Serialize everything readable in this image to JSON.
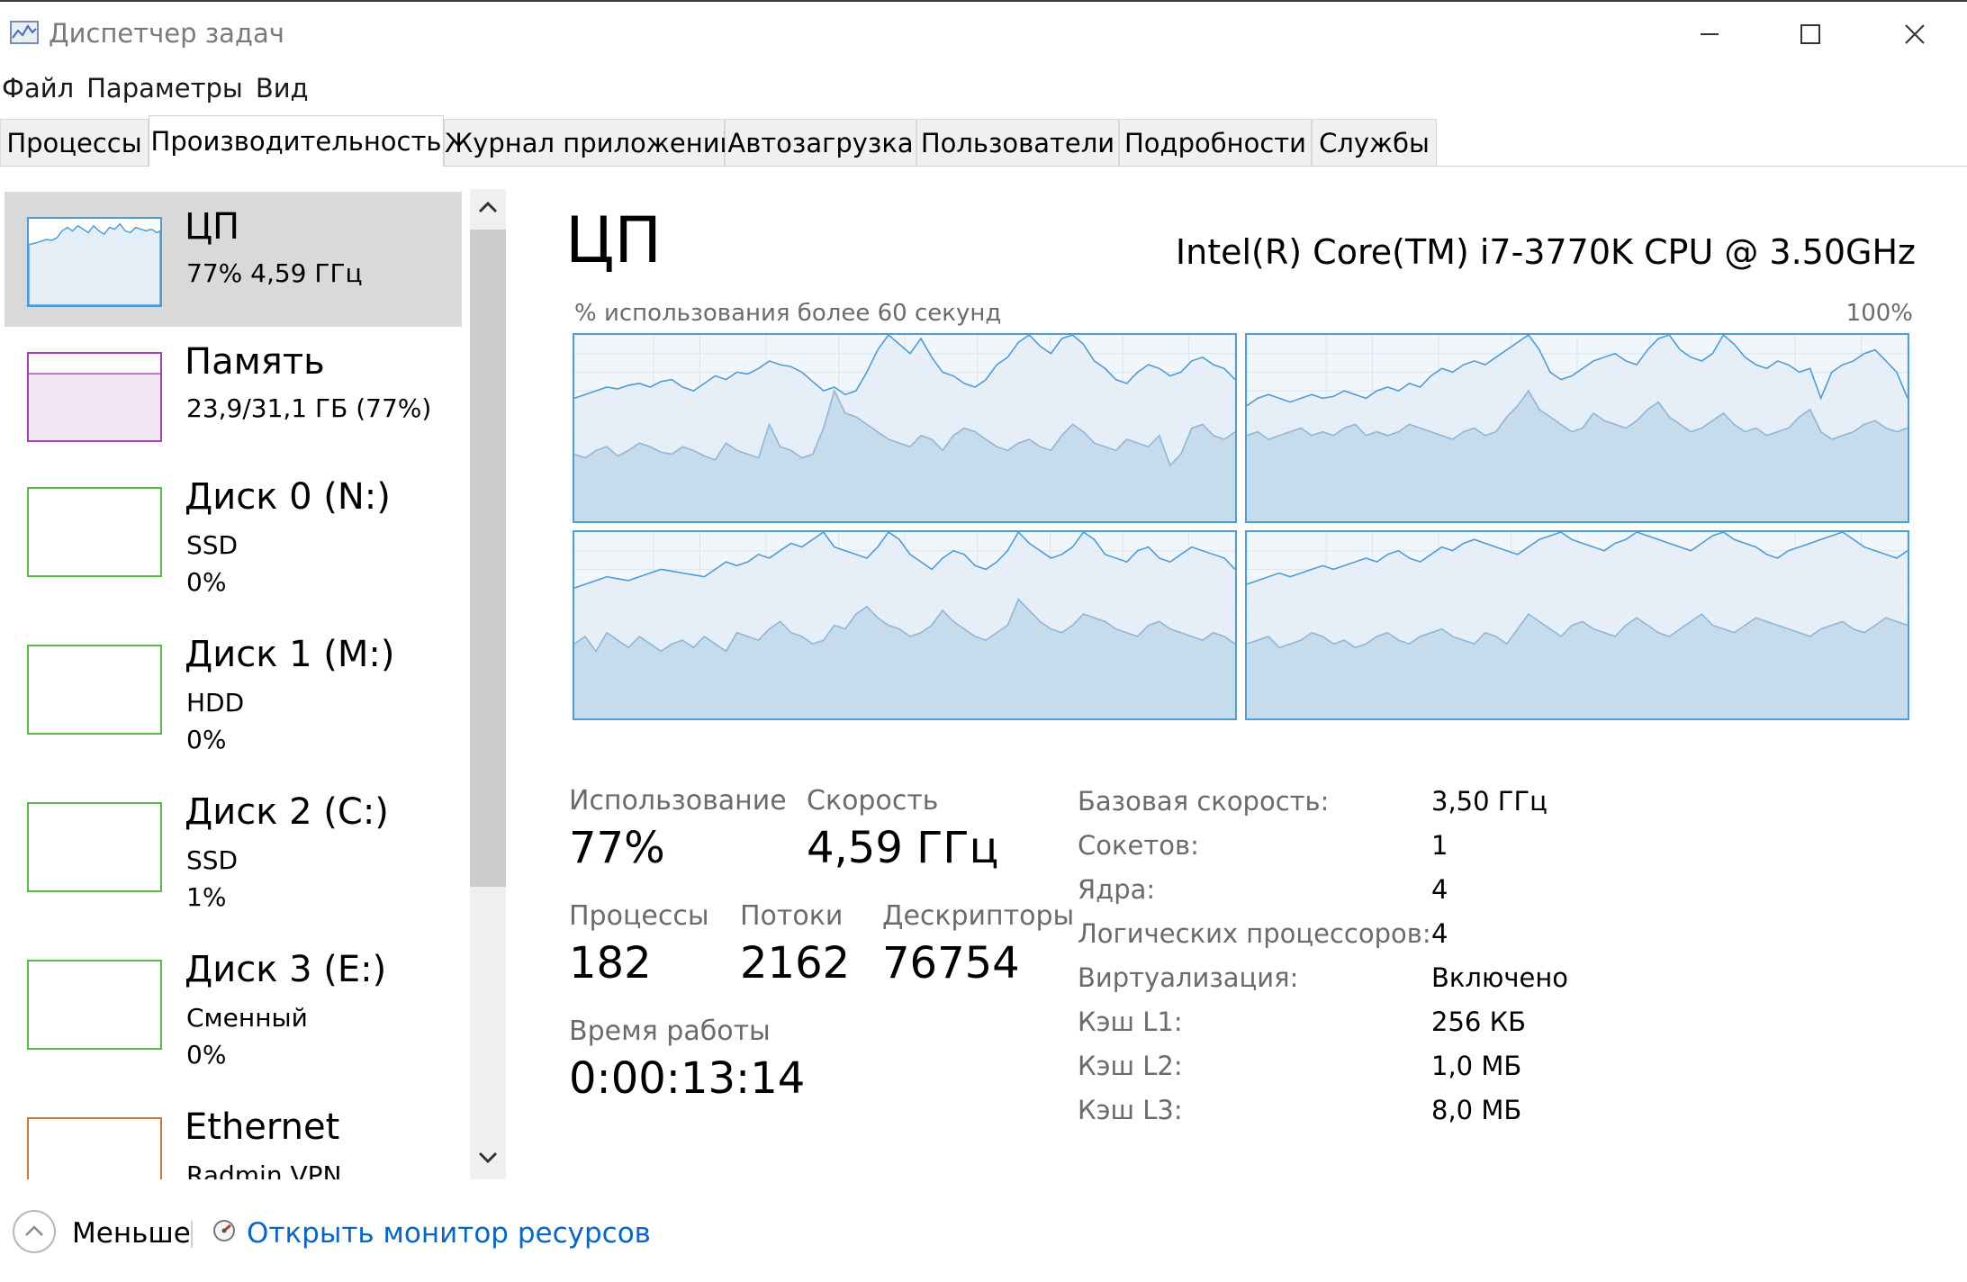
{
  "window": {
    "title": "Диспетчер задач"
  },
  "menu": [
    "Файл",
    "Параметры",
    "Вид"
  ],
  "tabs": [
    {
      "label": "Процессы",
      "active": false
    },
    {
      "label": "Производительность",
      "active": true
    },
    {
      "label": "Журнал приложений",
      "active": false
    },
    {
      "label": "Автозагрузка",
      "active": false
    },
    {
      "label": "Пользователи",
      "active": false
    },
    {
      "label": "Подробности",
      "active": false
    },
    {
      "label": "Службы",
      "active": false
    }
  ],
  "sidebar": {
    "items": [
      {
        "title": "ЦП",
        "line1": "77%  4,59 ГГц",
        "line2": "",
        "color": "#4f9bd3",
        "selected": true
      },
      {
        "title": "Память",
        "line1": "23,9/31,1 ГБ (77%)",
        "line2": "",
        "color": "#a23fb2",
        "fill_percent": 77
      },
      {
        "title": "Диск 0 (N:)",
        "line1": "SSD",
        "line2": "0%",
        "color": "#59b847"
      },
      {
        "title": "Диск 1 (M:)",
        "line1": "HDD",
        "line2": "0%",
        "color": "#59b847"
      },
      {
        "title": "Диск 2 (C:)",
        "line1": "SSD",
        "line2": "1%",
        "color": "#59b847"
      },
      {
        "title": "Диск 3 (E:)",
        "line1": "Сменный",
        "line2": "0%",
        "color": "#59b847"
      },
      {
        "title": "Ethernet",
        "line1": "Radmin VPN",
        "line2": "",
        "color": "#c8783c"
      }
    ]
  },
  "cpu": {
    "title": "ЦП",
    "model": "Intel(R) Core(TM) i7-3770K CPU @ 3.50GHz",
    "graph_caption": "% использования более 60 секунд",
    "graph_max": "100%",
    "usage_label": "Использование",
    "usage_value": "77%",
    "speed_label": "Скорость",
    "speed_value": "4,59 ГГц",
    "processes_label": "Процессы",
    "processes_value": "182",
    "threads_label": "Потоки",
    "threads_value": "2162",
    "handles_label": "Дескрипторы",
    "handles_value": "76754",
    "uptime_label": "Время работы",
    "uptime_value": "0:00:13:14",
    "specs": [
      {
        "key": "Базовая скорость:",
        "value": "3,50 ГГц"
      },
      {
        "key": "Сокетов:",
        "value": "1"
      },
      {
        "key": "Ядра:",
        "value": "4"
      },
      {
        "key": "Логических процессоров:",
        "value": "4"
      },
      {
        "key": "Виртуализация:",
        "value": "Включено"
      },
      {
        "key": "Кэш L1:",
        "value": "256 КБ"
      },
      {
        "key": "Кэш L2:",
        "value": "1,0 МБ"
      },
      {
        "key": "Кэш L3:",
        "value": "8,0 МБ"
      }
    ],
    "cores": [
      {
        "total": [
          66,
          68,
          70,
          72,
          71,
          73,
          74,
          72,
          75,
          76,
          72,
          70,
          74,
          78,
          76,
          80,
          79,
          82,
          86,
          84,
          83,
          80,
          75,
          70,
          72,
          68,
          70,
          80,
          92,
          100,
          95,
          90,
          98,
          88,
          80,
          78,
          74,
          72,
          76,
          84,
          88,
          96,
          100,
          94,
          90,
          98,
          100,
          95,
          86,
          82,
          76,
          74,
          80,
          84,
          82,
          78,
          80,
          86,
          88,
          84,
          82,
          76
        ],
        "kernel": [
          36,
          34,
          38,
          40,
          35,
          38,
          42,
          40,
          37,
          36,
          40,
          38,
          35,
          33,
          42,
          38,
          36,
          34,
          52,
          40,
          38,
          34,
          36,
          50,
          70,
          58,
          56,
          52,
          48,
          44,
          42,
          40,
          46,
          44,
          38,
          46,
          50,
          48,
          44,
          40,
          38,
          42,
          44,
          40,
          38,
          46,
          52,
          48,
          42,
          40,
          38,
          44,
          42,
          40,
          46,
          30,
          36,
          50,
          52,
          46,
          44,
          48
        ],
        "frame": [
          0,
          12,
          19,
          29,
          40,
          50,
          61,
          72,
          83,
          93,
          100
        ]
      },
      {
        "total": [
          62,
          66,
          68,
          66,
          64,
          66,
          68,
          66,
          67,
          70,
          68,
          66,
          70,
          72,
          70,
          74,
          72,
          78,
          82,
          80,
          84,
          86,
          84,
          88,
          92,
          96,
          100,
          92,
          80,
          76,
          78,
          82,
          86,
          88,
          90,
          86,
          84,
          92,
          98,
          100,
          92,
          88,
          86,
          90,
          100,
          95,
          88,
          84,
          82,
          86,
          84,
          80,
          82,
          66,
          80,
          84,
          86,
          90,
          92,
          86,
          80,
          66
        ],
        "kernel": [
          46,
          48,
          44,
          46,
          48,
          50,
          46,
          48,
          46,
          50,
          52,
          46,
          48,
          46,
          48,
          52,
          50,
          48,
          46,
          44,
          48,
          50,
          46,
          48,
          56,
          62,
          70,
          60,
          56,
          52,
          48,
          50,
          58,
          54,
          52,
          50,
          54,
          60,
          64,
          56,
          52,
          48,
          50,
          54,
          58,
          52,
          48,
          50,
          46,
          48,
          50,
          56,
          60,
          48,
          44,
          46,
          48,
          52,
          54,
          50,
          48,
          50
        ],
        "frame": [
          0,
          12,
          19,
          29,
          40,
          50,
          61,
          72,
          83,
          93,
          100
        ]
      },
      {
        "total": [
          70,
          72,
          74,
          76,
          75,
          74,
          76,
          78,
          80,
          79,
          78,
          77,
          76,
          80,
          84,
          82,
          84,
          88,
          86,
          90,
          94,
          92,
          96,
          100,
          92,
          90,
          88,
          86,
          92,
          100,
          96,
          88,
          84,
          80,
          86,
          90,
          88,
          82,
          80,
          84,
          90,
          100,
          94,
          90,
          86,
          88,
          92,
          100,
          96,
          88,
          86,
          84,
          90,
          92,
          86,
          84,
          88,
          92,
          90,
          88,
          86,
          80
        ],
        "kernel": [
          40,
          44,
          36,
          46,
          42,
          38,
          44,
          40,
          36,
          40,
          42,
          38,
          44,
          40,
          36,
          46,
          44,
          42,
          48,
          52,
          46,
          44,
          40,
          42,
          50,
          48,
          56,
          60,
          54,
          50,
          48,
          44,
          46,
          50,
          58,
          52,
          48,
          44,
          42,
          46,
          50,
          64,
          58,
          52,
          48,
          46,
          50,
          56,
          54,
          52,
          48,
          46,
          44,
          50,
          52,
          48,
          46,
          44,
          42,
          46,
          44,
          40
        ],
        "frame": [
          0,
          12,
          19,
          29,
          40,
          50,
          61,
          72,
          83,
          93,
          100
        ]
      },
      {
        "total": [
          72,
          74,
          76,
          78,
          76,
          78,
          80,
          82,
          80,
          82,
          84,
          86,
          84,
          88,
          90,
          86,
          84,
          88,
          92,
          90,
          94,
          96,
          94,
          92,
          90,
          88,
          92,
          96,
          98,
          100,
          96,
          94,
          92,
          90,
          94,
          96,
          100,
          98,
          96,
          94,
          92,
          90,
          94,
          98,
          100,
          96,
          94,
          92,
          88,
          86,
          90,
          92,
          94,
          96,
          98,
          100,
          96,
          92,
          90,
          88,
          86,
          90
        ],
        "kernel": [
          40,
          42,
          44,
          38,
          40,
          42,
          46,
          44,
          40,
          42,
          38,
          40,
          44,
          46,
          42,
          40,
          44,
          46,
          48,
          44,
          42,
          40,
          46,
          44,
          40,
          48,
          56,
          52,
          48,
          44,
          50,
          52,
          48,
          46,
          44,
          50,
          54,
          50,
          46,
          44,
          48,
          52,
          56,
          50,
          48,
          46,
          50,
          54,
          52,
          50,
          48,
          46,
          44,
          48,
          50,
          52,
          48,
          46,
          50,
          54,
          52,
          50
        ],
        "frame": [
          0,
          12,
          19,
          29,
          40,
          50,
          61,
          72,
          83,
          93,
          100
        ]
      }
    ]
  },
  "footer": {
    "less_label": "Меньше",
    "monitor_link": "Открыть монитор ресурсов"
  },
  "colors": {
    "graph_line": "#4f9bd3",
    "graph_fill": "#e3eef6",
    "kernel_fill": "#c6dbec",
    "selected_bg": "#d9d9d9"
  }
}
